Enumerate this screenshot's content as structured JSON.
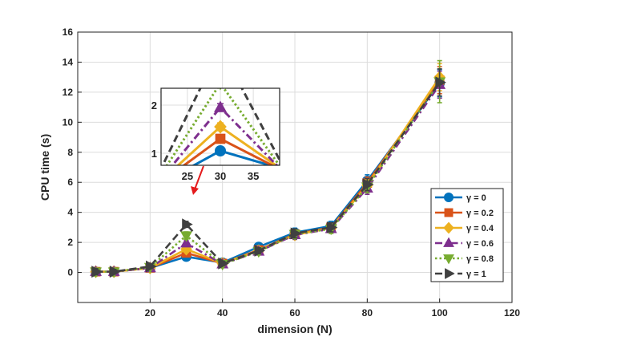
{
  "chart_data": {
    "type": "line",
    "xlabel": "dimension (N)",
    "ylabel": "CPU time (s)",
    "xlim": [
      0,
      120
    ],
    "ylim": [
      -2,
      16
    ],
    "xticks": [
      20,
      40,
      60,
      80,
      100,
      120
    ],
    "yticks": [
      0,
      2,
      4,
      6,
      8,
      10,
      12,
      14,
      16
    ],
    "grid": true,
    "legend_position": "lower-right",
    "x": [
      5,
      10,
      20,
      30,
      40,
      50,
      60,
      70,
      80,
      100
    ],
    "series": [
      {
        "name": "γ = 0",
        "color": "#0072BD",
        "marker": "circle",
        "dash": "solid",
        "values": [
          0.05,
          0.05,
          0.3,
          1.05,
          0.65,
          1.7,
          2.65,
          3.1,
          6.1,
          12.6
        ],
        "errors": [
          0.2,
          0.15,
          0.15,
          0.2,
          0.15,
          0.2,
          0.3,
          0.3,
          0.4,
          0.9
        ]
      },
      {
        "name": "γ = 0.2",
        "color": "#D95319",
        "marker": "square",
        "dash": "solid",
        "values": [
          0.05,
          0.05,
          0.3,
          1.3,
          0.6,
          1.5,
          2.55,
          3.0,
          5.95,
          12.8
        ],
        "errors": [
          0.2,
          0.15,
          0.15,
          0.2,
          0.15,
          0.2,
          0.3,
          0.3,
          0.4,
          0.9
        ]
      },
      {
        "name": "γ = 0.4",
        "color": "#EDB120",
        "marker": "diamond",
        "dash": "solid",
        "values": [
          0.05,
          0.05,
          0.3,
          1.55,
          0.6,
          1.45,
          2.5,
          2.95,
          5.8,
          13.0
        ],
        "errors": [
          0.2,
          0.15,
          0.15,
          0.2,
          0.15,
          0.2,
          0.3,
          0.3,
          0.4,
          0.9
        ]
      },
      {
        "name": "γ = 0.6",
        "color": "#7E2F8E",
        "marker": "triangle-up",
        "dash": "dashdot",
        "values": [
          0.05,
          0.05,
          0.3,
          1.95,
          0.55,
          1.4,
          2.5,
          2.9,
          5.6,
          12.5
        ],
        "errors": [
          0.2,
          0.15,
          0.15,
          0.2,
          0.15,
          0.2,
          0.3,
          0.3,
          0.4,
          0.9
        ]
      },
      {
        "name": "γ = 0.8",
        "color": "#77AC30",
        "marker": "triangle-down",
        "dash": "dotted",
        "values": [
          0.05,
          0.05,
          0.35,
          2.45,
          0.55,
          1.4,
          2.55,
          2.9,
          5.7,
          12.7
        ],
        "errors": [
          0.2,
          0.15,
          0.15,
          0.25,
          0.15,
          0.2,
          0.3,
          0.3,
          0.4,
          1.4
        ]
      },
      {
        "name": "γ = 1",
        "color": "#404040",
        "marker": "triangle-right",
        "dash": "dashed",
        "values": [
          0.05,
          0.05,
          0.4,
          3.2,
          0.6,
          1.45,
          2.6,
          3.0,
          5.85,
          12.65
        ],
        "errors": [
          0.2,
          0.15,
          0.15,
          0.2,
          0.15,
          0.2,
          0.3,
          0.3,
          0.4,
          0.9
        ]
      }
    ],
    "inset": {
      "xlim": [
        21,
        39
      ],
      "ylim": [
        0.75,
        2.35
      ],
      "xticks": [
        25,
        30,
        35
      ],
      "yticks": [
        1,
        2
      ],
      "values_at_30": [
        1.05,
        1.3,
        1.55,
        1.95,
        2.45,
        3.2
      ],
      "errors_at_30": [
        0.06,
        0.07,
        0.08,
        0.08,
        0.09,
        0.1
      ]
    }
  }
}
